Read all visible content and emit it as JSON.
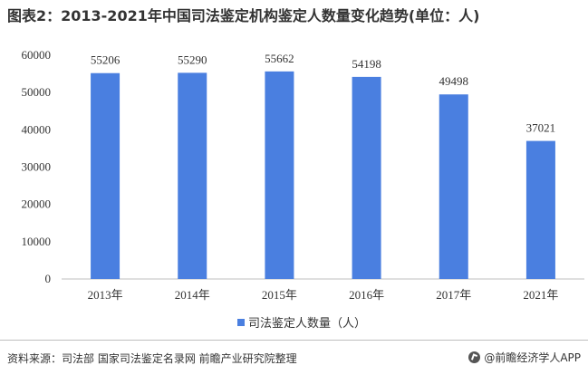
{
  "title": "图表2：2013-2021年中国司法鉴定机构鉴定人数量变化趋势(单位：人)",
  "footer": {
    "source": "资料来源：司法部 国家司法鉴定名录网 前瞻产业研究院整理",
    "brand": "@前瞻经济学人APP"
  },
  "colors": {
    "bar": "#4a7fe0",
    "axis": "#bfbfbf"
  },
  "chart_data": {
    "type": "bar",
    "categories": [
      "2013年",
      "2014年",
      "2015年",
      "2016年",
      "2017年",
      "2021年"
    ],
    "series": [
      {
        "name": "司法鉴定人数量（人）",
        "values": [
          55206,
          55290,
          55662,
          54198,
          49498,
          37021
        ]
      }
    ],
    "ylim": [
      0,
      60000
    ],
    "yticks": [
      0,
      10000,
      20000,
      30000,
      40000,
      50000,
      60000
    ],
    "data_labels": [
      "55206",
      "55290",
      "55662",
      "54198",
      "49498",
      "37021"
    ],
    "legend_position": "bottom",
    "grid": false
  }
}
